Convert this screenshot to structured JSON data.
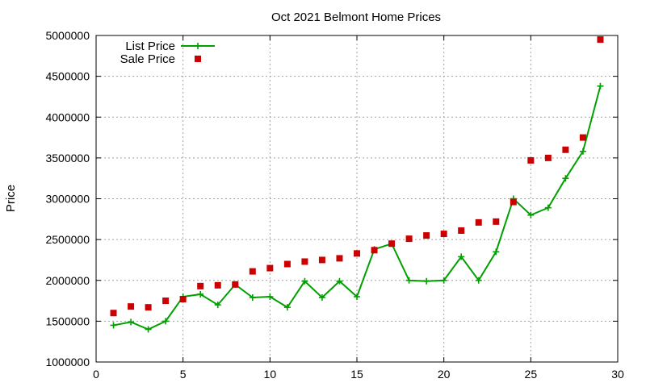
{
  "chart_data": {
    "type": "line",
    "title": "Oct 2021 Belmont Home Prices",
    "xlabel": "",
    "ylabel": "Price",
    "xlim": [
      0,
      30
    ],
    "ylim": [
      1000000,
      5000000
    ],
    "xticks": [
      0,
      5,
      10,
      15,
      20,
      25,
      30
    ],
    "yticks": [
      1000000,
      1500000,
      2000000,
      2500000,
      3000000,
      3500000,
      4000000,
      4500000,
      5000000
    ],
    "grid": true,
    "legend_position": "top-left",
    "x": [
      1,
      2,
      3,
      4,
      5,
      6,
      7,
      8,
      9,
      10,
      11,
      12,
      13,
      14,
      15,
      16,
      17,
      18,
      19,
      20,
      21,
      22,
      23,
      24,
      25,
      26,
      27,
      28,
      29
    ],
    "series": [
      {
        "name": "List Price",
        "style": "line-with-plus-markers",
        "color": "#00a000",
        "values": [
          1450000,
          1490000,
          1400000,
          1500000,
          1800000,
          1830000,
          1700000,
          1950000,
          1790000,
          1800000,
          1670000,
          1990000,
          1790000,
          1990000,
          1800000,
          2380000,
          2450000,
          2000000,
          1990000,
          2000000,
          2290000,
          2000000,
          2350000,
          3000000,
          2800000,
          2890000,
          3250000,
          3580000,
          4380000
        ]
      },
      {
        "name": "Sale Price",
        "style": "square-markers",
        "color": "#cc0000",
        "values": [
          1600000,
          1680000,
          1670000,
          1750000,
          1770000,
          1930000,
          1940000,
          1950000,
          2110000,
          2150000,
          2200000,
          2230000,
          2250000,
          2270000,
          2330000,
          2370000,
          2450000,
          2510000,
          2550000,
          2570000,
          2610000,
          2710000,
          2720000,
          2960000,
          3470000,
          3500000,
          3600000,
          3750000,
          4950000
        ]
      }
    ]
  }
}
